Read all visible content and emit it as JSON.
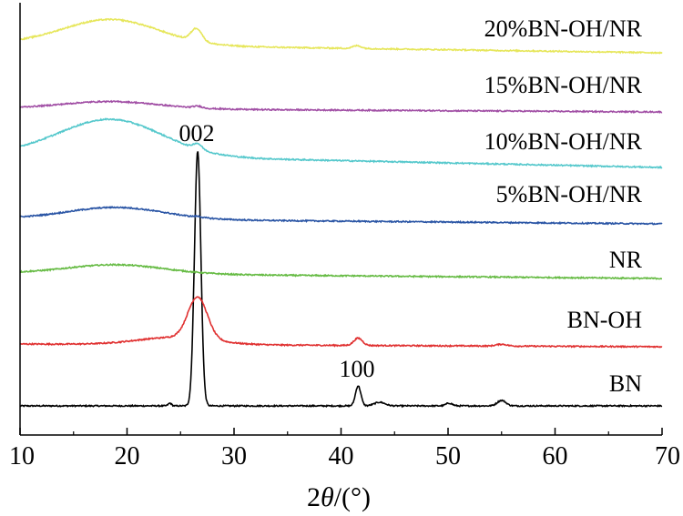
{
  "chart_data": {
    "type": "line",
    "title": "",
    "xlabel_prefix": "2",
    "xlabel_theta": "θ",
    "xlabel_suffix": "/(°)",
    "ylabel": "",
    "xlim": [
      10,
      70
    ],
    "xticks": [
      10,
      20,
      30,
      40,
      50,
      60,
      70
    ],
    "tick_labels": [
      "10",
      "20",
      "30",
      "40",
      "50",
      "60",
      "70"
    ],
    "grid": false,
    "legend": "inline labels at right",
    "annotations": [
      {
        "text": "002",
        "x": 26.6
      },
      {
        "text": "100",
        "x": 41.6
      }
    ],
    "series": [
      {
        "name": "BN",
        "color": "#000000",
        "baseline": 0,
        "peaks": [
          [
            24.0,
            3,
            0.15
          ],
          [
            26.6,
            280,
            0.3
          ],
          [
            41.6,
            22,
            0.25
          ],
          [
            43.6,
            4,
            0.5
          ],
          [
            50.1,
            3,
            0.3
          ],
          [
            55.0,
            6,
            0.4
          ]
        ],
        "humps": [],
        "tilt": 0
      },
      {
        "name": "BN-OH",
        "color": "#e03030",
        "baseline": 65,
        "peaks": [
          [
            26.6,
            46,
            0.9
          ],
          [
            41.6,
            8,
            0.4
          ],
          [
            55.0,
            2,
            0.5
          ]
        ],
        "humps": [
          [
            24.5,
            8,
            3.5
          ]
        ],
        "tilt": 3
      },
      {
        "name": "NR",
        "color": "#66bb44",
        "baseline": 140,
        "peaks": [],
        "humps": [
          [
            19.0,
            10,
            4.5
          ]
        ],
        "tilt": 6
      },
      {
        "name": "5%BN-OH/NR",
        "color": "#2a55a5",
        "baseline": 200,
        "peaks": [
          [
            26.6,
            1,
            0.3
          ]
        ],
        "humps": [
          [
            19.0,
            13,
            4.5
          ]
        ],
        "tilt": 6
      },
      {
        "name": "10%BN-OH/NR",
        "color": "#55c8cc",
        "baseline": 262,
        "peaks": [
          [
            26.6,
            6,
            0.4
          ]
        ],
        "humps": [
          [
            18.5,
            40,
            4.8
          ]
        ],
        "tilt": 15
      },
      {
        "name": "15%BN-OH/NR",
        "color": "#a14fa5",
        "baseline": 323,
        "peaks": [
          [
            26.6,
            2,
            0.4
          ]
        ],
        "humps": [
          [
            18.5,
            8,
            4.5
          ]
        ],
        "tilt": 4
      },
      {
        "name": "20%BN-OH/NR",
        "color": "#e6e65a",
        "baseline": 388,
        "peaks": [
          [
            26.5,
            14,
            0.5
          ],
          [
            41.5,
            3,
            0.4
          ]
        ],
        "humps": [
          [
            18.5,
            28,
            4.5
          ]
        ],
        "tilt": 10
      }
    ]
  }
}
